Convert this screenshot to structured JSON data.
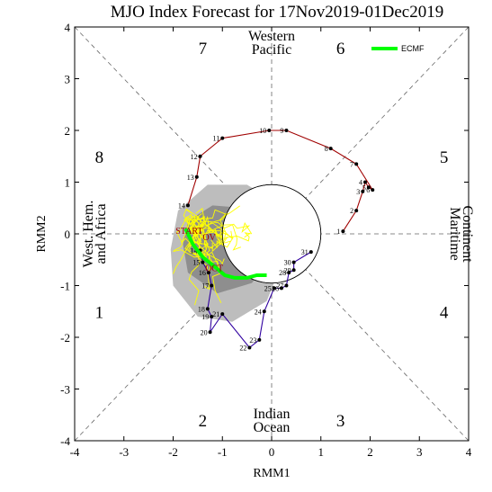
{
  "chart_data": {
    "type": "line",
    "title": "MJO Index Forecast for 17Nov2019-01Dec2019",
    "xlabel": "RMM1",
    "ylabel": "RMM2",
    "xlim": [
      -4,
      4
    ],
    "ylim": [
      -4,
      4
    ],
    "xticks": [
      "-4",
      "-3",
      "-2",
      "-1",
      "0",
      "1",
      "2",
      "3",
      "4"
    ],
    "yticks": [
      "-4",
      "-3",
      "-2",
      "-1",
      "0",
      "1",
      "2",
      "3",
      "4"
    ],
    "phases": [
      {
        "label": "7",
        "x": -1.4,
        "y": 3.6
      },
      {
        "label": "6",
        "x": 1.4,
        "y": 3.6
      },
      {
        "label": "8",
        "x": -3.5,
        "y": 1.5
      },
      {
        "label": "5",
        "x": 3.5,
        "y": 1.5
      },
      {
        "label": "1",
        "x": -3.5,
        "y": -1.5
      },
      {
        "label": "4",
        "x": 3.5,
        "y": -1.5
      },
      {
        "label": "2",
        "x": -1.4,
        "y": -3.6
      },
      {
        "label": "3",
        "x": 1.4,
        "y": -3.6
      }
    ],
    "regions": {
      "top": [
        "Western",
        "Pacific"
      ],
      "bottom": [
        "Indian",
        "Ocean"
      ],
      "left": [
        "West. Hem.",
        "and Africa"
      ],
      "right": [
        "Maritime",
        "Continent"
      ]
    },
    "legend": {
      "position": "top-right",
      "entries": [
        {
          "name": "ECMF",
          "color": "#00ff00"
        }
      ]
    },
    "series": [
      {
        "color": "#a00000",
        "points": [
          {
            "x": 1.45,
            "y": 0.05,
            "label": "1"
          },
          {
            "x": 1.72,
            "y": 0.45,
            "label": "2"
          },
          {
            "x": 1.85,
            "y": 0.82,
            "label": "3"
          },
          {
            "x": 1.9,
            "y": 1.0,
            "label": "4"
          },
          {
            "x": 1.97,
            "y": 0.9,
            "label": "5"
          },
          {
            "x": 2.05,
            "y": 0.85,
            "label": "6"
          },
          {
            "x": 1.72,
            "y": 1.35,
            "label": "7"
          },
          {
            "x": 1.2,
            "y": 1.65,
            "label": "8"
          },
          {
            "x": 0.3,
            "y": 2.0,
            "label": "9"
          },
          {
            "x": -0.05,
            "y": 2.0,
            "label": "10"
          },
          {
            "x": -1.0,
            "y": 1.85,
            "label": "11"
          },
          {
            "x": -1.45,
            "y": 1.5,
            "label": "12"
          },
          {
            "x": -1.52,
            "y": 1.1,
            "label": "13"
          },
          {
            "x": -1.7,
            "y": 0.55,
            "label": "14"
          }
        ]
      },
      {
        "color": "#3000a0",
        "points": [
          {
            "x": -1.45,
            "y": -0.32,
            "label": "14"
          },
          {
            "x": -1.4,
            "y": -0.55,
            "label": "15"
          },
          {
            "x": -1.28,
            "y": -0.75,
            "label": "16"
          },
          {
            "x": -1.22,
            "y": -1.0,
            "label": "17"
          },
          {
            "x": -1.3,
            "y": -1.45,
            "label": "18"
          },
          {
            "x": -1.22,
            "y": -1.6,
            "label": "19"
          },
          {
            "x": -1.25,
            "y": -1.9,
            "label": "20"
          },
          {
            "x": -1.0,
            "y": -1.55,
            "label": "21"
          },
          {
            "x": -0.45,
            "y": -2.2,
            "label": "22"
          },
          {
            "x": -0.25,
            "y": -2.05,
            "label": "23"
          },
          {
            "x": -0.15,
            "y": -1.5,
            "label": "24"
          },
          {
            "x": 0.05,
            "y": -1.05,
            "label": "25"
          },
          {
            "x": 0.2,
            "y": -1.05,
            "label": "26"
          },
          {
            "x": 0.3,
            "y": -1.0,
            "label": "27"
          },
          {
            "x": 0.35,
            "y": -0.75,
            "label": "28"
          },
          {
            "x": 0.45,
            "y": -0.7,
            "label": "29"
          },
          {
            "x": 0.45,
            "y": -0.55,
            "label": "30"
          },
          {
            "x": 0.8,
            "y": -0.35,
            "label": "31"
          }
        ]
      },
      {
        "name": "ECMF",
        "color": "#00ff00",
        "points": [
          {
            "x": -1.75,
            "y": 0.1
          },
          {
            "x": -1.6,
            "y": -0.2
          },
          {
            "x": -1.4,
            "y": -0.45
          },
          {
            "x": -1.2,
            "y": -0.6
          },
          {
            "x": -0.95,
            "y": -0.8
          },
          {
            "x": -0.75,
            "y": -0.85
          },
          {
            "x": -0.5,
            "y": -0.85
          },
          {
            "x": -0.3,
            "y": -0.8
          },
          {
            "x": -0.1,
            "y": -0.8
          }
        ]
      }
    ],
    "ensemble_color": "#ffff00",
    "ensemble_envelope": [
      {
        "x": -1.9,
        "y": 0.45
      },
      {
        "x": -1.3,
        "y": 0.95
      },
      {
        "x": -0.5,
        "y": 0.95
      },
      {
        "x": 0.1,
        "y": 0.6
      },
      {
        "x": 0.3,
        "y": 0.1
      },
      {
        "x": 0.2,
        "y": -0.6
      },
      {
        "x": -0.1,
        "y": -1.3
      },
      {
        "x": -0.8,
        "y": -1.7
      },
      {
        "x": -1.5,
        "y": -1.6
      },
      {
        "x": -2.0,
        "y": -1.0
      },
      {
        "x": -2.05,
        "y": -0.3
      }
    ],
    "ensemble_inner": [
      {
        "x": -1.7,
        "y": 0.25
      },
      {
        "x": -1.2,
        "y": 0.55
      },
      {
        "x": -0.55,
        "y": 0.5
      },
      {
        "x": -0.1,
        "y": 0.15
      },
      {
        "x": -0.05,
        "y": -0.5
      },
      {
        "x": -0.4,
        "y": -0.95
      },
      {
        "x": -1.1,
        "y": -1.15
      },
      {
        "x": -1.7,
        "y": -0.75
      },
      {
        "x": -1.8,
        "y": -0.2
      }
    ],
    "stray_labels": [
      {
        "text": "START",
        "color": "#a00000",
        "x": -1.95,
        "y": 0.0
      },
      {
        "text": "OV",
        "color": "#a00000",
        "x": -1.4,
        "y": -0.12
      },
      {
        "text": "OCT",
        "color": "#a00000",
        "x": -1.35,
        "y": -0.72
      }
    ],
    "unit_circle": true,
    "secondary_circle": {
      "x": 0.0,
      "y": 0.0,
      "r": 1.0
    }
  }
}
